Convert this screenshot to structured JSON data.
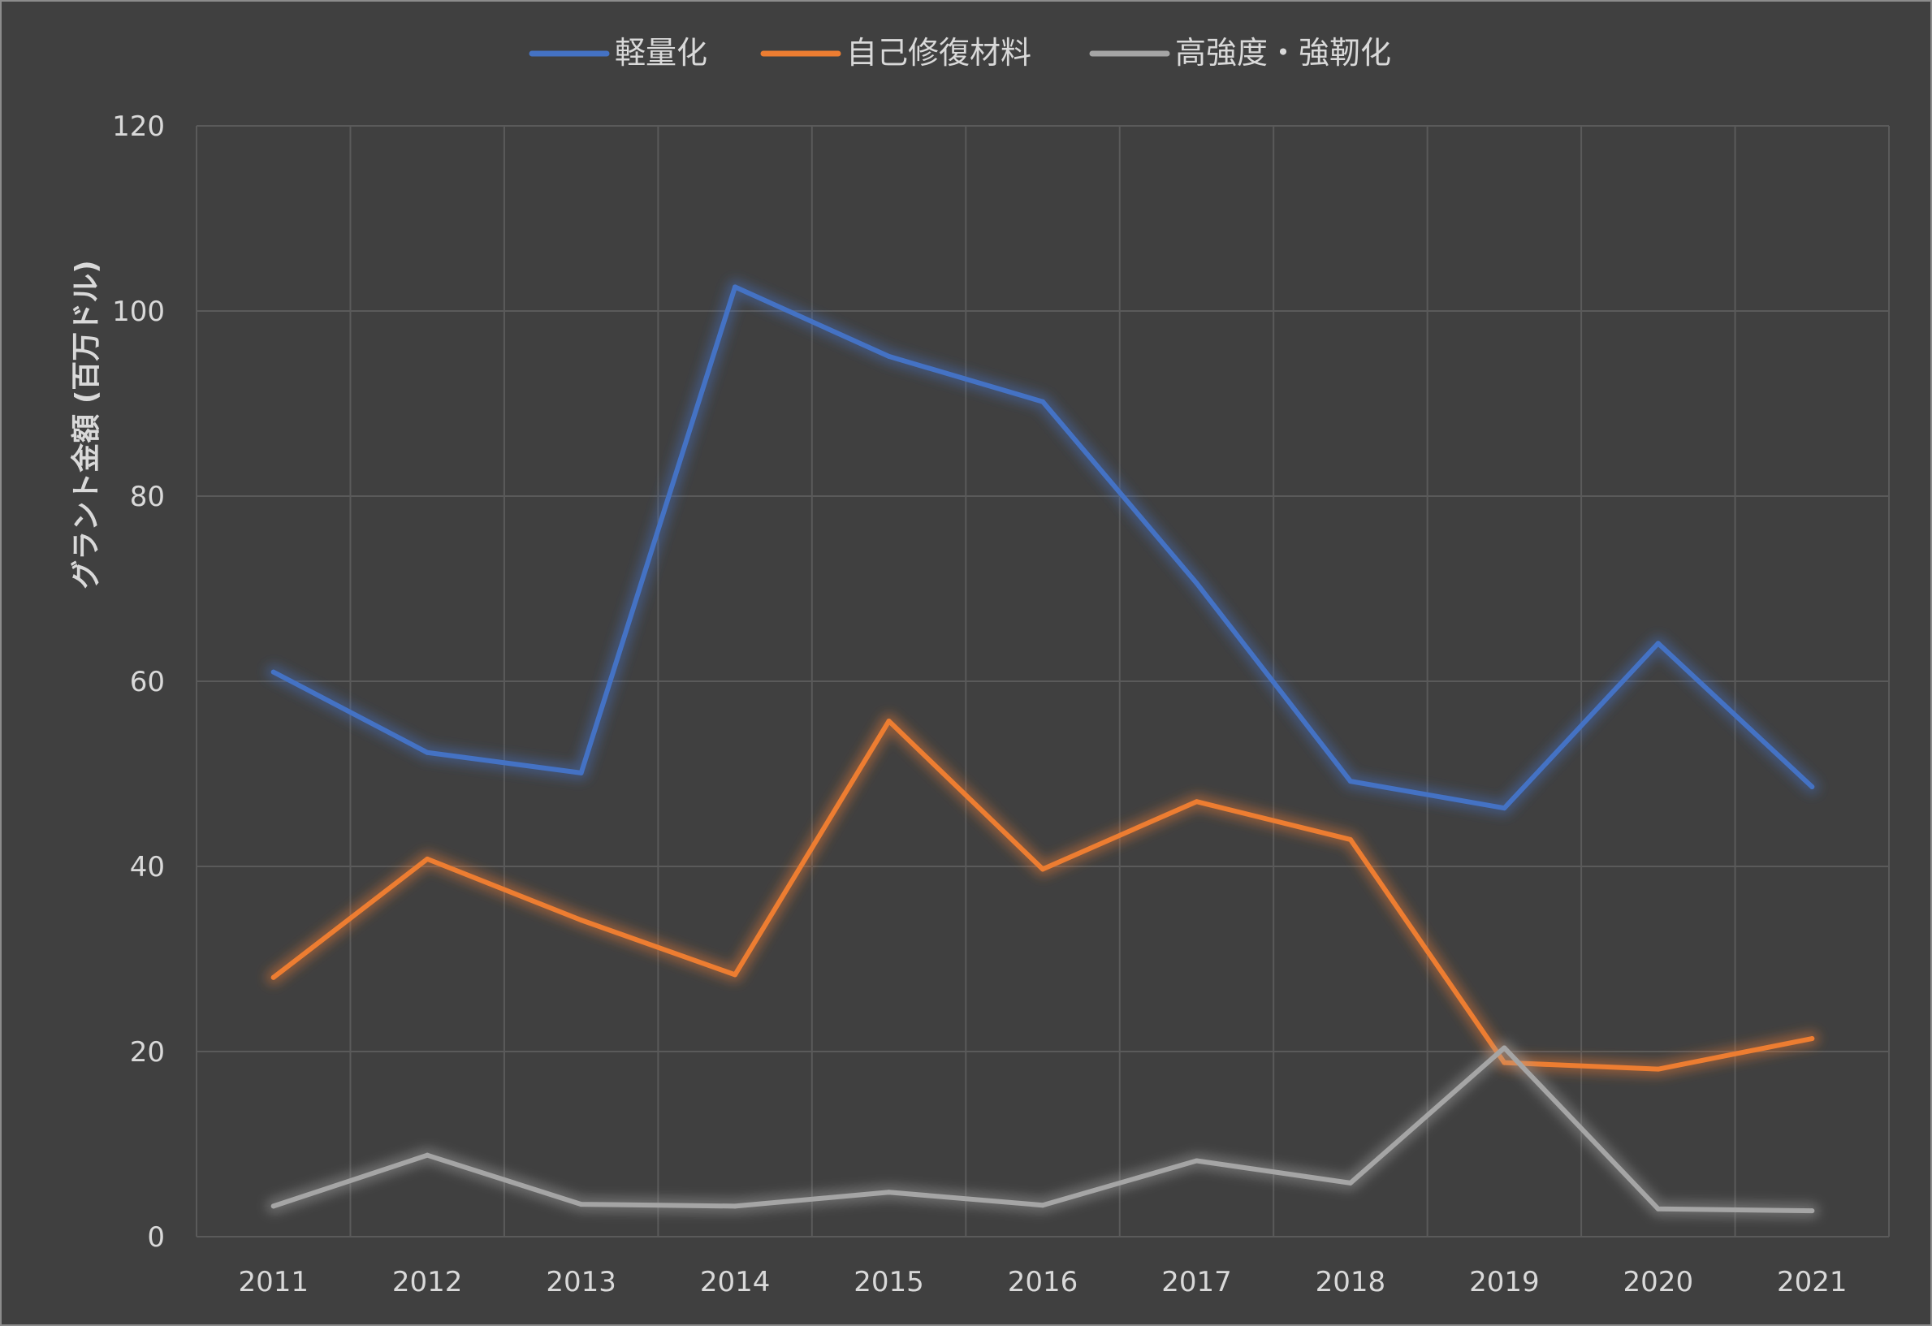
{
  "chart_data": {
    "type": "line",
    "title": "",
    "xlabel": "",
    "ylabel": "グラント金額 (百万ドル)",
    "ylim": [
      0,
      120
    ],
    "yticks": [
      0,
      20,
      40,
      60,
      80,
      100,
      120
    ],
    "grid": true,
    "legend_position": "top-center",
    "background": "#404040",
    "categories": [
      "2011",
      "2012",
      "2013",
      "2014",
      "2015",
      "2016",
      "2017",
      "2018",
      "2019",
      "2020",
      "2021"
    ],
    "series": [
      {
        "name": "軽量化",
        "color": "#4472C4",
        "values": [
          61.0,
          52.3,
          50.1,
          102.6,
          95.1,
          90.2,
          70.6,
          49.2,
          46.3,
          64.1,
          48.6
        ]
      },
      {
        "name": "自己修復材料",
        "color": "#ED7D31",
        "values": [
          28.0,
          40.8,
          34.2,
          28.3,
          55.7,
          39.7,
          47.0,
          42.9,
          18.8,
          18.1,
          21.4
        ]
      },
      {
        "name": "高強度・強靭化",
        "color": "#A5A5A5",
        "values": [
          3.3,
          8.8,
          3.5,
          3.3,
          4.8,
          3.4,
          8.2,
          5.8,
          20.4,
          3.0,
          2.8
        ]
      }
    ]
  }
}
